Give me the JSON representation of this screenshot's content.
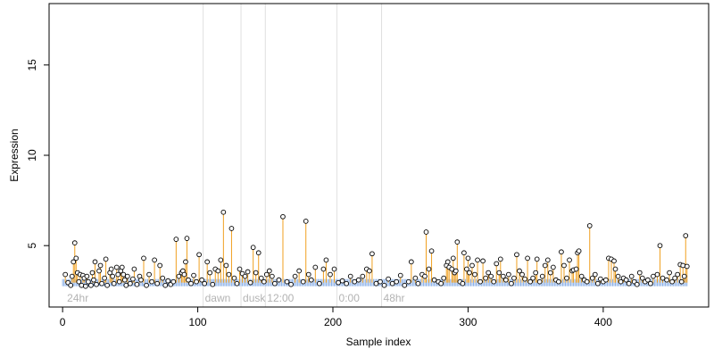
{
  "chart_data": {
    "type": "scatter",
    "title": "",
    "xlabel": "Sample index",
    "ylabel": "Expression",
    "xlim": [
      -10,
      478
    ],
    "ylim": [
      1.6,
      18.4
    ],
    "x_ticks": [
      0,
      100,
      200,
      300,
      400
    ],
    "y_ticks": [
      5,
      10,
      15
    ],
    "baseline": 2.95,
    "grid": false,
    "colors": {
      "stem": "#f0a020",
      "point_fill": "#ffffff",
      "point_stroke": "#000000",
      "baseline_marks": "#8fb3e8",
      "annotation": "#b3b3b3",
      "vline": "#e0e0e0"
    },
    "annotations": [
      {
        "x": 2,
        "label": "24hr"
      },
      {
        "x": 104,
        "label": "dawn"
      },
      {
        "x": 132,
        "label": "dusk"
      },
      {
        "x": 150,
        "label": "12:00"
      },
      {
        "x": 203,
        "label": "0:00"
      },
      {
        "x": 236,
        "label": "48hr"
      }
    ],
    "vlines": [
      104,
      132,
      150,
      203,
      236
    ],
    "seed": 7,
    "points": [
      [
        2,
        3.4
      ],
      [
        4,
        2.95
      ],
      [
        6,
        2.8
      ],
      [
        7,
        3.3
      ],
      [
        8,
        4.1
      ],
      [
        9,
        5.15
      ],
      [
        10,
        4.3
      ],
      [
        11,
        3.5
      ],
      [
        12,
        3.0
      ],
      [
        13,
        3.4
      ],
      [
        14,
        2.8
      ],
      [
        15,
        3.35
      ],
      [
        16,
        3.2
      ],
      [
        17,
        2.75
      ],
      [
        18,
        3.3
      ],
      [
        19,
        3.0
      ],
      [
        21,
        2.8
      ],
      [
        22,
        3.5
      ],
      [
        23,
        3.1
      ],
      [
        24,
        4.1
      ],
      [
        25,
        2.85
      ],
      [
        27,
        3.6
      ],
      [
        28,
        3.9
      ],
      [
        29,
        2.9
      ],
      [
        31,
        3.2
      ],
      [
        32,
        4.25
      ],
      [
        33,
        2.8
      ],
      [
        35,
        3.5
      ],
      [
        36,
        3.7
      ],
      [
        37,
        3.3
      ],
      [
        38,
        2.9
      ],
      [
        40,
        3.8
      ],
      [
        41,
        3.4
      ],
      [
        42,
        3.0
      ],
      [
        43,
        3.6
      ],
      [
        44,
        3.8
      ],
      [
        45,
        3.4
      ],
      [
        46,
        3.1
      ],
      [
        47,
        2.8
      ],
      [
        48,
        3.3
      ],
      [
        50,
        2.9
      ],
      [
        52,
        3.15
      ],
      [
        53,
        3.7
      ],
      [
        55,
        2.85
      ],
      [
        57,
        3.3
      ],
      [
        58,
        3.1
      ],
      [
        60,
        4.3
      ],
      [
        62,
        2.8
      ],
      [
        64,
        3.4
      ],
      [
        66,
        3.0
      ],
      [
        68,
        4.2
      ],
      [
        70,
        2.9
      ],
      [
        72,
        3.9
      ],
      [
        74,
        3.2
      ],
      [
        76,
        2.8
      ],
      [
        78,
        3.05
      ],
      [
        80,
        2.85
      ],
      [
        82,
        3.0
      ],
      [
        84,
        5.35
      ],
      [
        86,
        3.3
      ],
      [
        88,
        3.5
      ],
      [
        89,
        3.6
      ],
      [
        90,
        3.4
      ],
      [
        91,
        4.1
      ],
      [
        92,
        5.4
      ],
      [
        93,
        3.1
      ],
      [
        95,
        2.9
      ],
      [
        97,
        3.35
      ],
      [
        99,
        3.0
      ],
      [
        101,
        4.5
      ],
      [
        103,
        3.1
      ],
      [
        105,
        2.9
      ],
      [
        107,
        4.1
      ],
      [
        109,
        3.5
      ],
      [
        111,
        2.85
      ],
      [
        113,
        3.7
      ],
      [
        115,
        3.6
      ],
      [
        117,
        4.2
      ],
      [
        119,
        6.85
      ],
      [
        121,
        3.9
      ],
      [
        123,
        3.4
      ],
      [
        125,
        5.95
      ],
      [
        127,
        3.2
      ],
      [
        129,
        2.9
      ],
      [
        131,
        3.7
      ],
      [
        133,
        3.45
      ],
      [
        135,
        3.3
      ],
      [
        137,
        3.55
      ],
      [
        139,
        2.95
      ],
      [
        141,
        4.9
      ],
      [
        143,
        3.5
      ],
      [
        145,
        4.6
      ],
      [
        147,
        3.2
      ],
      [
        149,
        3.0
      ],
      [
        151,
        3.4
      ],
      [
        153,
        3.6
      ],
      [
        155,
        3.3
      ],
      [
        157,
        2.9
      ],
      [
        160,
        3.1
      ],
      [
        163,
        6.6
      ],
      [
        166,
        3.0
      ],
      [
        169,
        2.85
      ],
      [
        172,
        3.3
      ],
      [
        175,
        3.6
      ],
      [
        178,
        3.0
      ],
      [
        180,
        6.35
      ],
      [
        182,
        3.4
      ],
      [
        184,
        3.1
      ],
      [
        187,
        3.8
      ],
      [
        190,
        2.9
      ],
      [
        193,
        3.7
      ],
      [
        195,
        4.2
      ],
      [
        198,
        3.4
      ],
      [
        201,
        3.7
      ],
      [
        204,
        2.95
      ],
      [
        207,
        3.05
      ],
      [
        210,
        2.9
      ],
      [
        213,
        3.3
      ],
      [
        216,
        3.0
      ],
      [
        219,
        3.1
      ],
      [
        222,
        3.3
      ],
      [
        225,
        3.7
      ],
      [
        227,
        3.6
      ],
      [
        229,
        4.55
      ],
      [
        232,
        2.9
      ],
      [
        235,
        3.0
      ],
      [
        238,
        2.8
      ],
      [
        241,
        3.15
      ],
      [
        244,
        2.9
      ],
      [
        247,
        3.0
      ],
      [
        250,
        3.35
      ],
      [
        253,
        2.8
      ],
      [
        256,
        3.0
      ],
      [
        258,
        4.1
      ],
      [
        261,
        3.2
      ],
      [
        263,
        2.9
      ],
      [
        266,
        3.4
      ],
      [
        268,
        3.3
      ],
      [
        269,
        5.75
      ],
      [
        271,
        3.7
      ],
      [
        273,
        4.7
      ],
      [
        275,
        3.1
      ],
      [
        278,
        3.0
      ],
      [
        280,
        2.9
      ],
      [
        282,
        3.2
      ],
      [
        284,
        3.9
      ],
      [
        285,
        4.1
      ],
      [
        286,
        3.8
      ],
      [
        288,
        3.7
      ],
      [
        289,
        4.3
      ],
      [
        290,
        3.5
      ],
      [
        291,
        3.6
      ],
      [
        292,
        5.2
      ],
      [
        294,
        3.0
      ],
      [
        296,
        2.9
      ],
      [
        297,
        4.6
      ],
      [
        299,
        3.7
      ],
      [
        300,
        4.3
      ],
      [
        301,
        3.5
      ],
      [
        303,
        3.9
      ],
      [
        305,
        3.4
      ],
      [
        307,
        4.2
      ],
      [
        309,
        3.0
      ],
      [
        311,
        4.15
      ],
      [
        313,
        3.2
      ],
      [
        315,
        3.5
      ],
      [
        317,
        3.3
      ],
      [
        319,
        3.0
      ],
      [
        321,
        4.0
      ],
      [
        323,
        3.5
      ],
      [
        324,
        4.25
      ],
      [
        326,
        3.3
      ],
      [
        328,
        3.1
      ],
      [
        330,
        3.4
      ],
      [
        332,
        2.9
      ],
      [
        334,
        3.2
      ],
      [
        336,
        4.5
      ],
      [
        338,
        3.6
      ],
      [
        340,
        3.4
      ],
      [
        342,
        3.15
      ],
      [
        344,
        4.3
      ],
      [
        346,
        3.0
      ],
      [
        348,
        3.2
      ],
      [
        350,
        3.5
      ],
      [
        351,
        4.25
      ],
      [
        353,
        3.0
      ],
      [
        355,
        3.3
      ],
      [
        357,
        3.9
      ],
      [
        359,
        4.2
      ],
      [
        361,
        3.5
      ],
      [
        363,
        3.8
      ],
      [
        365,
        3.1
      ],
      [
        367,
        3.0
      ],
      [
        369,
        4.65
      ],
      [
        371,
        3.9
      ],
      [
        373,
        3.2
      ],
      [
        375,
        4.2
      ],
      [
        377,
        3.6
      ],
      [
        378,
        3.65
      ],
      [
        380,
        3.7
      ],
      [
        381,
        4.6
      ],
      [
        382,
        4.7
      ],
      [
        384,
        3.3
      ],
      [
        386,
        3.1
      ],
      [
        388,
        3.0
      ],
      [
        390,
        6.1
      ],
      [
        392,
        3.2
      ],
      [
        394,
        3.4
      ],
      [
        396,
        2.9
      ],
      [
        398,
        3.15
      ],
      [
        400,
        3.0
      ],
      [
        402,
        3.1
      ],
      [
        404,
        4.3
      ],
      [
        406,
        4.25
      ],
      [
        408,
        4.15
      ],
      [
        409,
        3.7
      ],
      [
        411,
        3.3
      ],
      [
        413,
        3.0
      ],
      [
        415,
        3.2
      ],
      [
        417,
        3.1
      ],
      [
        419,
        2.9
      ],
      [
        421,
        3.3
      ],
      [
        423,
        3.0
      ],
      [
        425,
        2.85
      ],
      [
        427,
        3.5
      ],
      [
        429,
        3.2
      ],
      [
        431,
        3.0
      ],
      [
        433,
        3.1
      ],
      [
        435,
        2.9
      ],
      [
        437,
        3.3
      ],
      [
        440,
        3.4
      ],
      [
        442,
        5.0
      ],
      [
        444,
        3.2
      ],
      [
        447,
        3.1
      ],
      [
        449,
        3.5
      ],
      [
        451,
        3.0
      ],
      [
        453,
        3.2
      ],
      [
        455,
        3.4
      ],
      [
        457,
        3.95
      ],
      [
        458,
        3.0
      ],
      [
        459,
        3.9
      ],
      [
        460,
        3.3
      ],
      [
        461,
        5.55
      ],
      [
        462,
        3.85
      ]
    ]
  }
}
